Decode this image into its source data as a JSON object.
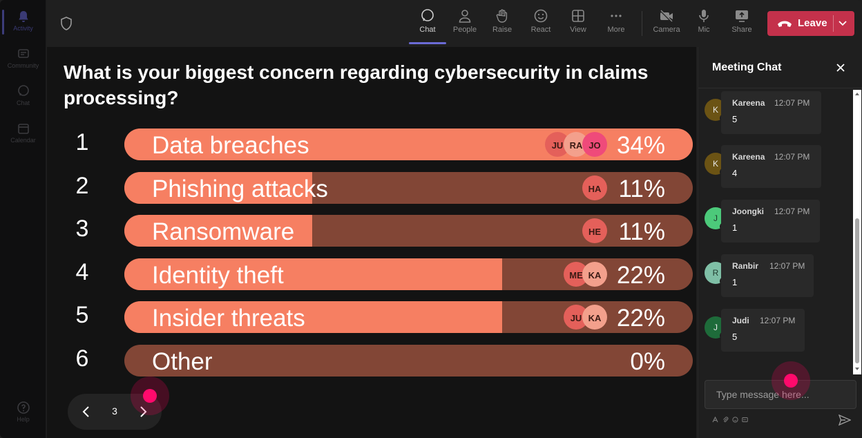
{
  "rail": {
    "items": [
      {
        "label": "Activity",
        "icon": "bell-icon",
        "active": true
      },
      {
        "label": "Community",
        "icon": "community-icon"
      },
      {
        "label": "Chat",
        "icon": "chat-icon"
      },
      {
        "label": "Calendar",
        "icon": "calendar-icon"
      },
      {
        "label": "Help",
        "icon": "help-icon"
      }
    ]
  },
  "toolbar": {
    "chat": "Chat",
    "people": "People",
    "raise": "Raise",
    "react": "React",
    "view": "View",
    "more": "More",
    "camera": "Camera",
    "mic": "Mic",
    "share": "Share",
    "leave": "Leave"
  },
  "poll": {
    "question": "What is your biggest concern regarding cybersecurity in claims processing?",
    "options": [
      {
        "number": "1",
        "label": "Data breaches",
        "percent": "34%",
        "fraction": 1.0,
        "voters": [
          "JU",
          "RA",
          "JO"
        ]
      },
      {
        "number": "2",
        "label": "Phishing attacks",
        "percent": "11%",
        "fraction": 0.33,
        "voters": [
          "HA"
        ]
      },
      {
        "number": "3",
        "label": "Ransomware",
        "percent": "11%",
        "fraction": 0.33,
        "voters": [
          "HE"
        ]
      },
      {
        "number": "4",
        "label": "Identity theft",
        "percent": "22%",
        "fraction": 0.665,
        "voters": [
          "ME",
          "KA"
        ]
      },
      {
        "number": "5",
        "label": "Insider threats",
        "percent": "22%",
        "fraction": 0.665,
        "voters": [
          "JU",
          "KA"
        ]
      },
      {
        "number": "6",
        "label": "Other",
        "percent": "0%",
        "fraction": 0.0,
        "voters": []
      }
    ],
    "page": "3"
  },
  "chat": {
    "title": "Meeting Chat",
    "placeholder": "Type message here...",
    "messages": [
      {
        "initial": "K",
        "author": "Kareena",
        "time": "12:07 PM",
        "text": "5",
        "avatar_color": "#6b5314"
      },
      {
        "initial": "K",
        "author": "Kareena",
        "time": "12:07 PM",
        "text": "4",
        "avatar_color": "#6b5314"
      },
      {
        "initial": "J",
        "author": "Joongki",
        "time": "12:07 PM",
        "text": "1",
        "avatar_color": "#4cc97a"
      },
      {
        "initial": "R",
        "author": "Ranbir",
        "time": "12:07 PM",
        "text": "1",
        "avatar_color": "#7fbfa6"
      },
      {
        "initial": "J",
        "author": "Judi",
        "time": "12:07 PM",
        "text": "5",
        "avatar_color": "#1e6b3a"
      }
    ]
  },
  "colors": {
    "bar_fill": "#f67f62",
    "bar_track": "#824636",
    "leave": "#c4314b",
    "accent": "#6b6bd6"
  }
}
